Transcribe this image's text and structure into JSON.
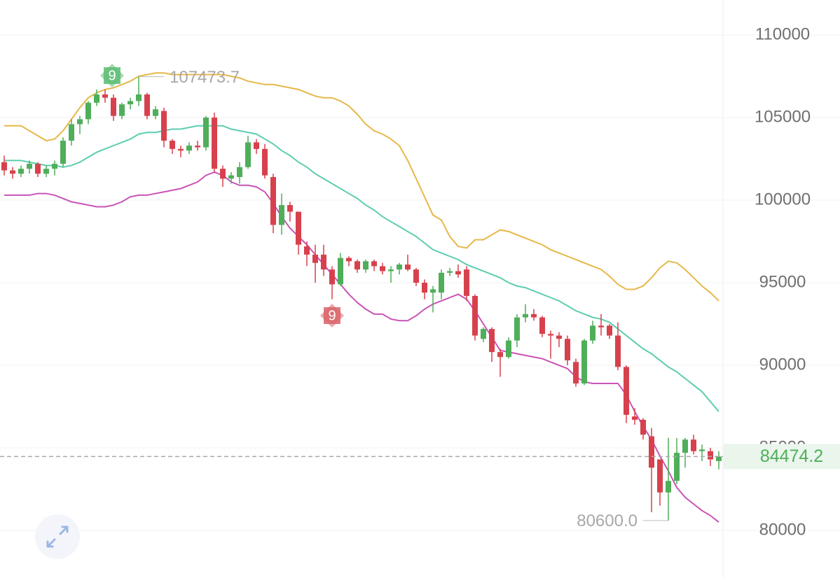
{
  "chart_data": {
    "type": "candlestick",
    "ylim": [
      77119,
      112119
    ],
    "yticks": [
      80000,
      85000,
      90000,
      95000,
      100000,
      105000,
      110000
    ],
    "grid": true,
    "up_color": "#4fae5a",
    "down_color": "#d7414d",
    "open": [
      102300,
      101800,
      101600,
      101900,
      102200,
      101600,
      101900,
      102200,
      103600,
      104600,
      104900,
      105900,
      106400,
      106200,
      105100,
      105800,
      106000,
      106400,
      105100,
      105400,
      103600,
      103100,
      103000,
      103300,
      103200,
      105000,
      101900,
      101300,
      101400,
      102000,
      103500,
      103100,
      101400,
      98500,
      99700,
      99300,
      97200,
      96700,
      96700,
      95800,
      94900,
      96500,
      96300,
      95800,
      96300,
      96000,
      95700,
      95800,
      96100,
      95800,
      95000,
      94400,
      94400,
      95600,
      95700,
      95800,
      94200,
      91600,
      92200,
      90800,
      90500,
      91500,
      92900,
      93100,
      92900,
      91900,
      91800,
      91600,
      90200,
      88900,
      91500,
      92400,
      92400,
      91800,
      89900,
      86900,
      86700,
      85700,
      84300,
      82300,
      83000,
      84700,
      85500,
      84800,
      84800,
      84200
    ],
    "high": [
      102700,
      102000,
      102100,
      102400,
      102300,
      102100,
      102400,
      103800,
      104900,
      105100,
      106000,
      106700,
      106700,
      106400,
      105900,
      106200,
      107473.7,
      106500,
      105700,
      105600,
      103700,
      103300,
      103500,
      103600,
      105100,
      105300,
      102100,
      101700,
      102300,
      103900,
      103700,
      103400,
      101600,
      100400,
      99900,
      99300,
      97500,
      97300,
      97300,
      96000,
      96800,
      96600,
      96400,
      96400,
      96400,
      96200,
      96000,
      96200,
      96700,
      95900,
      95200,
      94800,
      95800,
      95900,
      96100,
      96000,
      94300,
      92300,
      92300,
      91000,
      91700,
      93100,
      93700,
      93400,
      93000,
      92100,
      92000,
      91800,
      90400,
      91600,
      92700,
      93100,
      92500,
      92600,
      90000,
      87400,
      86800,
      86200,
      84300,
      85600,
      85600,
      85600,
      85800,
      85200,
      85000,
      84800
    ],
    "low": [
      101500,
      101300,
      101400,
      101600,
      101400,
      101400,
      101500,
      102000,
      103300,
      104000,
      104600,
      105700,
      105900,
      104800,
      104900,
      105500,
      105700,
      104900,
      104900,
      103200,
      102800,
      102600,
      102800,
      103000,
      103000,
      101700,
      100800,
      101000,
      101000,
      101900,
      102800,
      101300,
      98000,
      97900,
      98700,
      96700,
      96000,
      95000,
      95400,
      94000,
      94800,
      96000,
      95600,
      95600,
      95700,
      95500,
      95000,
      95500,
      95700,
      94800,
      94000,
      93200,
      94000,
      95400,
      95300,
      93900,
      91500,
      91400,
      90200,
      89300,
      90400,
      91100,
      92600,
      92700,
      91700,
      90400,
      91100,
      90000,
      88700,
      88800,
      91300,
      91800,
      91600,
      89700,
      86500,
      86400,
      85500,
      81100,
      81500,
      80600,
      82800,
      83800,
      84600,
      84200,
      83900,
      83700
    ],
    "close": [
      101800,
      101600,
      101900,
      102200,
      101600,
      101900,
      102200,
      103600,
      104600,
      104900,
      105900,
      106400,
      106200,
      105100,
      105800,
      106000,
      106400,
      105100,
      105500,
      103600,
      103100,
      103000,
      103300,
      103200,
      105000,
      101900,
      101300,
      101500,
      102000,
      103500,
      103100,
      101500,
      98500,
      99700,
      99300,
      97300,
      96700,
      96200,
      95800,
      94900,
      96500,
      96300,
      95800,
      96300,
      96000,
      95700,
      95800,
      96100,
      95800,
      95000,
      94400,
      94600,
      95600,
      95700,
      95500,
      94200,
      91800,
      92200,
      90800,
      90500,
      91500,
      92900,
      93100,
      92900,
      91900,
      91800,
      91600,
      90300,
      88900,
      91500,
      92400,
      92300,
      91800,
      89900,
      87000,
      86700,
      85800,
      83800,
      82300,
      83000,
      84700,
      85500,
      84800,
      84900,
      84300,
      84474.2
    ],
    "series": [
      {
        "name": "upper",
        "color": "#e6b848",
        "values": [
          104500,
          104500,
          104500,
          104200,
          103900,
          103600,
          103700,
          104200,
          104900,
          105600,
          106200,
          106500,
          106700,
          106800,
          107000,
          107200,
          107500,
          107600,
          107700,
          107700,
          107600,
          107600,
          107600,
          107600,
          107600,
          107600,
          107600,
          107500,
          107400,
          107200,
          107100,
          107000,
          107000,
          106900,
          106800,
          106700,
          106500,
          106300,
          106200,
          106200,
          106000,
          105700,
          105200,
          104600,
          104200,
          104000,
          103700,
          103300,
          102400,
          101300,
          100200,
          99100,
          98800,
          97800,
          97200,
          97100,
          97600,
          97600,
          97900,
          98200,
          98100,
          97900,
          97700,
          97500,
          97300,
          97000,
          96800,
          96600,
          96400,
          96200,
          96000,
          95800,
          95400,
          94900,
          94600,
          94600,
          94800,
          95300,
          95900,
          96300,
          96200,
          95800,
          95300,
          94800,
          94400,
          93900
        ]
      },
      {
        "name": "middle",
        "color": "#5ccdb0",
        "values": [
          102400,
          102400,
          102400,
          102300,
          102200,
          102100,
          102100,
          102000,
          102100,
          102300,
          102600,
          102900,
          103100,
          103300,
          103500,
          103700,
          104000,
          104100,
          104100,
          104200,
          104300,
          104300,
          104400,
          104500,
          104500,
          104500,
          104500,
          104300,
          104200,
          104100,
          104000,
          103700,
          103400,
          103000,
          102700,
          102300,
          102000,
          101600,
          101300,
          101000,
          100700,
          100400,
          100100,
          99700,
          99400,
          99000,
          98700,
          98400,
          98100,
          97800,
          97400,
          97000,
          96800,
          96600,
          96400,
          96100,
          95900,
          95700,
          95500,
          95300,
          95000,
          94800,
          94700,
          94500,
          94300,
          94100,
          93900,
          93600,
          93300,
          93100,
          92900,
          92800,
          92600,
          92200,
          91800,
          91400,
          91000,
          90700,
          90300,
          89900,
          89600,
          89200,
          88800,
          88400,
          87800,
          87200
        ]
      },
      {
        "name": "lower",
        "color": "#c953b6",
        "values": [
          100300,
          100300,
          100300,
          100300,
          100400,
          100400,
          100300,
          100100,
          99900,
          99800,
          99700,
          99600,
          99600,
          99700,
          99900,
          100200,
          100300,
          100300,
          100400,
          100500,
          100600,
          100700,
          100900,
          101100,
          101500,
          101700,
          101500,
          101100,
          100900,
          100900,
          100800,
          100500,
          99800,
          99000,
          98300,
          97800,
          97300,
          96700,
          96100,
          95500,
          94900,
          94300,
          93800,
          93400,
          93100,
          93100,
          92800,
          92700,
          92700,
          93000,
          93400,
          93700,
          93900,
          94100,
          94300,
          94000,
          93300,
          92500,
          91700,
          90900,
          90800,
          90700,
          90600,
          90500,
          90400,
          90200,
          90000,
          89800,
          89300,
          89000,
          88900,
          88900,
          88900,
          88900,
          88200,
          87200,
          86300,
          85500,
          84500,
          83600,
          82600,
          82000,
          81600,
          81200,
          80900,
          80500
        ]
      }
    ],
    "extremes": {
      "high": 107473.7,
      "low": {
        "value": 80600,
        "label": "80600.0"
      }
    },
    "last_price": 84474.2,
    "annotations": [
      {
        "text": "9",
        "color": "#5dbd74"
      },
      {
        "text": "9",
        "color": "#d9646a"
      }
    ]
  }
}
